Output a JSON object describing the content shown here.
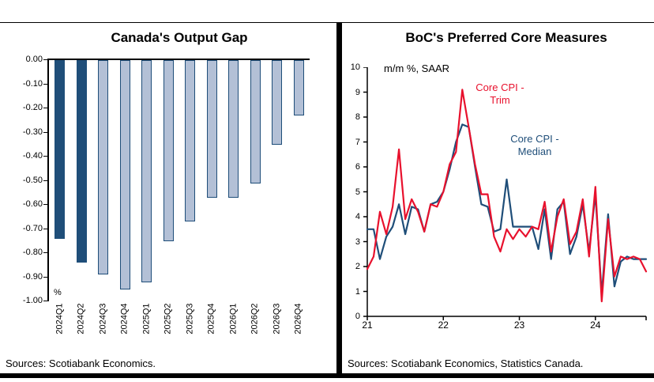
{
  "left_panel": {
    "title": "Canada's Output Gap",
    "source": "Sources: Scotiabank Economics."
  },
  "right_panel": {
    "title": "BoC's Preferred Core Measures",
    "unit_label": "m/m %, SAAR",
    "series_labels": {
      "trim": [
        "Core CPI -",
        "Trim"
      ],
      "median": [
        "Core CPI -",
        "Median"
      ]
    },
    "source": "Sources: Scotiabank Economics, Statistics Canada."
  },
  "colors": {
    "navy": "#1F4E79",
    "forecast_bar_fill": "#b3c0d6",
    "red": "#E8112D",
    "axis": "#000000"
  },
  "chart_data": [
    {
      "type": "bar",
      "title": "Canada's Output Gap",
      "ylabel": "%",
      "ylim": [
        -1.0,
        0.0
      ],
      "grid": false,
      "ytick_labels": [
        "0.00",
        "-0.10",
        "-0.20",
        "-0.30",
        "-0.40",
        "-0.50",
        "-0.60",
        "-0.70",
        "-0.80",
        "-0.90",
        "-1.00"
      ],
      "categories": [
        "2024Q1",
        "2024Q2",
        "2024Q3",
        "2024Q4",
        "2025Q1",
        "2025Q2",
        "2025Q3",
        "2025Q4",
        "2026Q1",
        "2026Q2",
        "2026Q3",
        "2026Q4"
      ],
      "values": [
        -0.74,
        -0.84,
        -0.89,
        -0.95,
        -0.92,
        -0.75,
        -0.67,
        -0.57,
        -0.57,
        -0.51,
        -0.35,
        -0.23
      ],
      "solid_bar_count": 2
    },
    {
      "type": "line",
      "title": "BoC's Preferred Core Measures",
      "subtitle": "m/m %, SAAR",
      "ylim": [
        0,
        10
      ],
      "grid": false,
      "legend_position": "inline-annotations",
      "ytick_labels": [
        "10",
        "9",
        "8",
        "7",
        "6",
        "5",
        "4",
        "3",
        "2",
        "1",
        "0"
      ],
      "xtick_labels": [
        "21",
        "22",
        "23",
        "24"
      ],
      "xtick_positions": [
        0,
        12,
        24,
        36
      ],
      "x_frequency": "monthly",
      "series": [
        {
          "name": "Core CPI - Trim",
          "color": "#E8112D",
          "values": [
            1.9,
            2.4,
            4.2,
            3.3,
            4.4,
            6.7,
            3.9,
            4.7,
            4.2,
            3.4,
            4.5,
            4.4,
            5.0,
            6.1,
            6.6,
            9.1,
            7.6,
            6.1,
            4.9,
            4.9,
            3.2,
            2.6,
            3.5,
            3.1,
            3.5,
            3.2,
            3.6,
            3.5,
            4.6,
            2.6,
            4.0,
            4.7,
            2.9,
            3.4,
            4.7,
            2.4,
            5.2,
            0.6,
            3.9,
            1.6,
            2.4,
            2.3,
            2.4,
            2.3,
            1.8
          ]
        },
        {
          "name": "Core CPI - Median",
          "color": "#1F4E79",
          "values": [
            3.5,
            3.5,
            2.3,
            3.2,
            3.6,
            4.5,
            3.3,
            4.4,
            4.3,
            3.4,
            4.5,
            4.6,
            5.0,
            5.9,
            7.0,
            7.7,
            7.6,
            6.0,
            4.5,
            4.4,
            3.4,
            3.5,
            5.5,
            3.6,
            3.6,
            3.6,
            3.6,
            2.7,
            4.3,
            2.3,
            4.3,
            4.6,
            2.5,
            3.2,
            4.5,
            2.6,
            4.9,
            0.9,
            4.1,
            1.2,
            2.2,
            2.4,
            2.3,
            2.3,
            2.3
          ]
        }
      ]
    }
  ]
}
